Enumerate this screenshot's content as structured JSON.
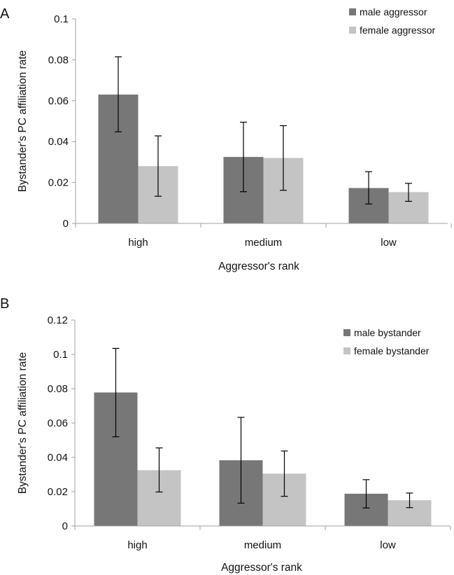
{
  "colors": {
    "male": "#777777",
    "female": "#c4c4c4",
    "axis": "#a0a0a0",
    "errorbar": "#000000"
  },
  "chart_data": [
    {
      "type": "bar",
      "panel_label": "A",
      "categories": [
        "high",
        "medium",
        "low"
      ],
      "series": [
        {
          "name": "male aggressor",
          "values": [
            0.063,
            0.0325,
            0.0173
          ],
          "err_low": [
            0.0448,
            0.0155,
            0.0095
          ],
          "err_high": [
            0.0815,
            0.0495,
            0.0253
          ]
        },
        {
          "name": "female aggressor",
          "values": [
            0.028,
            0.032,
            0.0153
          ],
          "err_low": [
            0.0133,
            0.0162,
            0.0108
          ],
          "err_high": [
            0.0428,
            0.0478,
            0.0196
          ]
        }
      ],
      "xlabel": "Aggressor's rank",
      "ylabel": "Bystander's PC affiliation rate",
      "ylim": [
        0,
        0.1
      ],
      "yticks": [
        "0",
        "0.02",
        "0.04",
        "0.06",
        "0.08",
        "0.1"
      ],
      "grid": false,
      "legend": "top-right"
    },
    {
      "type": "bar",
      "panel_label": "B",
      "categories": [
        "high",
        "medium",
        "low"
      ],
      "series": [
        {
          "name": "male bystander",
          "values": [
            0.0778,
            0.0383,
            0.0188
          ],
          "err_low": [
            0.052,
            0.0133,
            0.0105
          ],
          "err_high": [
            0.1035,
            0.0633,
            0.027
          ]
        },
        {
          "name": "female bystander",
          "values": [
            0.0325,
            0.0305,
            0.015
          ],
          "err_low": [
            0.0198,
            0.0173,
            0.0107
          ],
          "err_high": [
            0.0455,
            0.0437,
            0.0192
          ]
        }
      ],
      "xlabel": "Aggressor's rank",
      "ylabel": "Bystander's PC affiliation rate",
      "ylim": [
        0,
        0.12
      ],
      "yticks": [
        "0",
        "0.02",
        "0.04",
        "0.06",
        "0.08",
        "0.1",
        "0.12"
      ],
      "grid": false,
      "legend": "top-right"
    }
  ]
}
